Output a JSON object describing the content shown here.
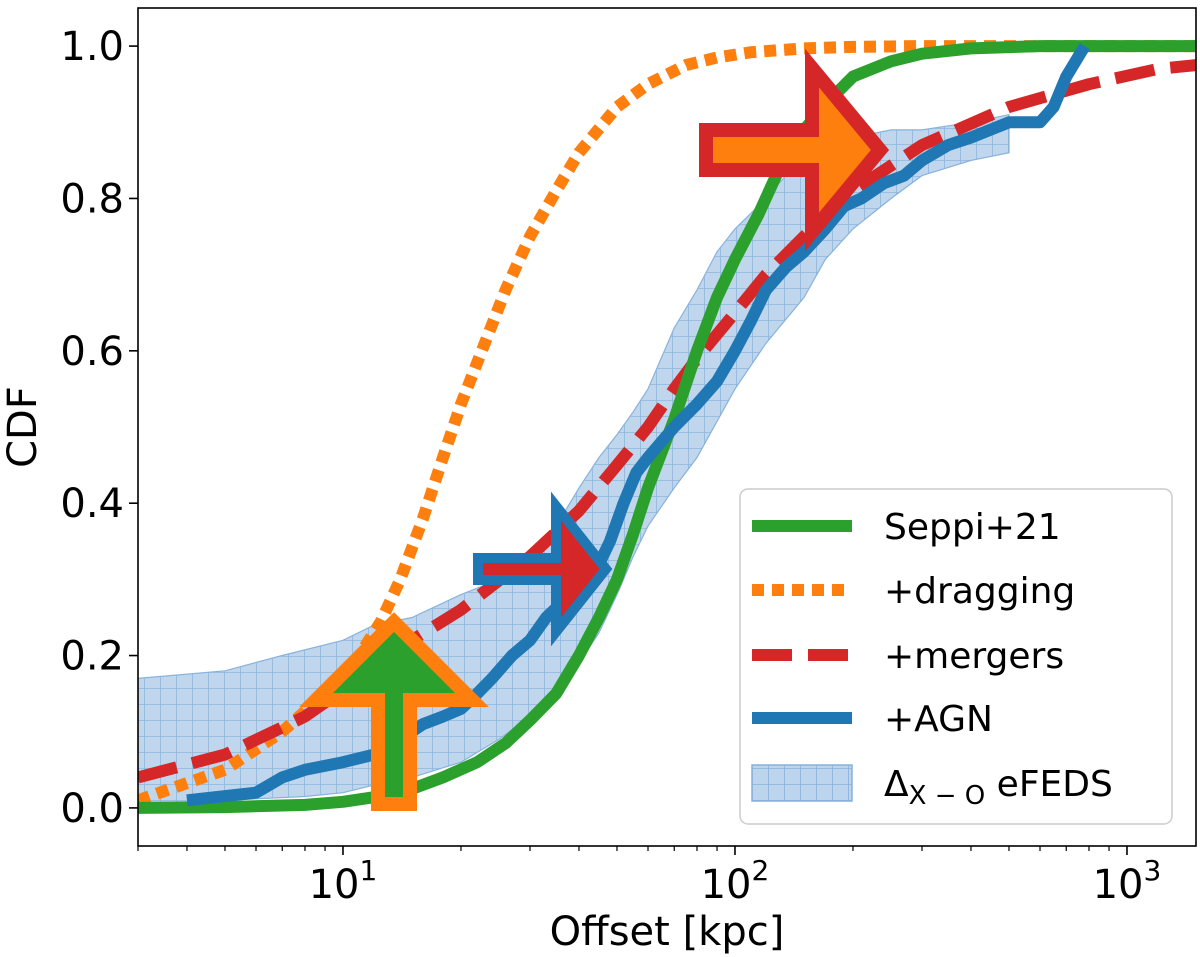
{
  "chart_data": {
    "type": "line",
    "xscale": "log",
    "xlim": [
      3,
      1500
    ],
    "ylim": [
      -0.05,
      1.05
    ],
    "xlabel": "Offset [kpc]",
    "ylabel": "CDF",
    "yticks": [
      0.0,
      0.2,
      0.4,
      0.6,
      0.8,
      1.0
    ],
    "ytick_labels": [
      "0.0",
      "0.2",
      "0.4",
      "0.6",
      "0.8",
      "1.0"
    ],
    "xticks": [
      10,
      100,
      1000
    ],
    "xtick_labels": [
      {
        "base": "10",
        "exp": "1"
      },
      {
        "base": "10",
        "exp": "2"
      },
      {
        "base": "10",
        "exp": "3"
      }
    ],
    "legend_position": "lower-right",
    "series": [
      {
        "name": "Seppi+21",
        "style": "solid",
        "color": "#2ca02c",
        "points": [
          [
            3,
            0.0
          ],
          [
            5,
            0.001
          ],
          [
            8,
            0.004
          ],
          [
            10,
            0.008
          ],
          [
            12,
            0.014
          ],
          [
            15,
            0.025
          ],
          [
            18,
            0.04
          ],
          [
            22,
            0.06
          ],
          [
            26,
            0.085
          ],
          [
            30,
            0.115
          ],
          [
            35,
            0.15
          ],
          [
            40,
            0.2
          ],
          [
            45,
            0.25
          ],
          [
            50,
            0.3
          ],
          [
            55,
            0.36
          ],
          [
            60,
            0.42
          ],
          [
            70,
            0.51
          ],
          [
            80,
            0.6
          ],
          [
            90,
            0.67
          ],
          [
            100,
            0.72
          ],
          [
            115,
            0.78
          ],
          [
            130,
            0.84
          ],
          [
            150,
            0.89
          ],
          [
            175,
            0.93
          ],
          [
            200,
            0.96
          ],
          [
            250,
            0.98
          ],
          [
            300,
            0.99
          ],
          [
            400,
            0.997
          ],
          [
            600,
            1.0
          ],
          [
            1500,
            1.0
          ]
        ]
      },
      {
        "name": "+dragging",
        "style": "dotted",
        "color": "#ff7f0e",
        "points": [
          [
            3,
            0.01
          ],
          [
            5,
            0.05
          ],
          [
            7,
            0.1
          ],
          [
            9,
            0.15
          ],
          [
            11,
            0.2
          ],
          [
            12.5,
            0.245
          ],
          [
            14,
            0.3
          ],
          [
            16,
            0.38
          ],
          [
            18,
            0.46
          ],
          [
            20,
            0.53
          ],
          [
            23,
            0.61
          ],
          [
            26,
            0.68
          ],
          [
            30,
            0.75
          ],
          [
            35,
            0.81
          ],
          [
            40,
            0.86
          ],
          [
            50,
            0.92
          ],
          [
            60,
            0.95
          ],
          [
            75,
            0.975
          ],
          [
            90,
            0.985
          ],
          [
            110,
            0.992
          ],
          [
            150,
            0.997
          ],
          [
            200,
            0.999
          ],
          [
            300,
            1.0
          ],
          [
            1500,
            1.0
          ]
        ]
      },
      {
        "name": "+mergers",
        "style": "dashed",
        "color": "#d62728",
        "points": [
          [
            3,
            0.04
          ],
          [
            5,
            0.07
          ],
          [
            8,
            0.12
          ],
          [
            11,
            0.17
          ],
          [
            15,
            0.22
          ],
          [
            20,
            0.26
          ],
          [
            30,
            0.33
          ],
          [
            40,
            0.39
          ],
          [
            50,
            0.45
          ],
          [
            60,
            0.5
          ],
          [
            70,
            0.55
          ],
          [
            80,
            0.59
          ],
          [
            100,
            0.65
          ],
          [
            120,
            0.7
          ],
          [
            150,
            0.75
          ],
          [
            200,
            0.81
          ],
          [
            300,
            0.87
          ],
          [
            500,
            0.92
          ],
          [
            800,
            0.95
          ],
          [
            1200,
            0.97
          ],
          [
            1500,
            0.975
          ]
        ]
      },
      {
        "name": "+AGN",
        "style": "solid",
        "color": "#1f77b4",
        "points": [
          [
            4,
            0.01
          ],
          [
            6,
            0.02
          ],
          [
            7,
            0.04
          ],
          [
            8,
            0.05
          ],
          [
            10,
            0.06
          ],
          [
            12,
            0.07
          ],
          [
            13,
            0.075
          ],
          [
            14,
            0.09
          ],
          [
            16,
            0.11
          ],
          [
            18,
            0.12
          ],
          [
            20,
            0.13
          ],
          [
            22,
            0.15
          ],
          [
            24,
            0.17
          ],
          [
            27,
            0.2
          ],
          [
            30,
            0.22
          ],
          [
            33,
            0.25
          ],
          [
            38,
            0.28
          ],
          [
            42,
            0.3
          ],
          [
            45,
            0.32
          ],
          [
            48,
            0.35
          ],
          [
            52,
            0.4
          ],
          [
            56,
            0.44
          ],
          [
            60,
            0.46
          ],
          [
            70,
            0.5
          ],
          [
            80,
            0.53
          ],
          [
            90,
            0.56
          ],
          [
            100,
            0.6
          ],
          [
            110,
            0.64
          ],
          [
            120,
            0.68
          ],
          [
            135,
            0.71
          ],
          [
            150,
            0.73
          ],
          [
            170,
            0.76
          ],
          [
            190,
            0.79
          ],
          [
            210,
            0.8
          ],
          [
            240,
            0.82
          ],
          [
            270,
            0.83
          ],
          [
            300,
            0.85
          ],
          [
            350,
            0.87
          ],
          [
            400,
            0.88
          ],
          [
            500,
            0.9
          ],
          [
            600,
            0.9
          ],
          [
            650,
            0.92
          ],
          [
            700,
            0.96
          ],
          [
            780,
            1.0
          ]
        ]
      }
    ],
    "band": {
      "name": "Δ_X-O eFEDS",
      "label_delta": "Δ",
      "label_sub": "X − O",
      "label_rest": " eFEDS",
      "color": "#aac8e4",
      "upper": [
        [
          3,
          0.17
        ],
        [
          5,
          0.18
        ],
        [
          7,
          0.2
        ],
        [
          10,
          0.22
        ],
        [
          12,
          0.24
        ],
        [
          15,
          0.25
        ],
        [
          20,
          0.28
        ],
        [
          25,
          0.3
        ],
        [
          30,
          0.33
        ],
        [
          35,
          0.37
        ],
        [
          40,
          0.42
        ],
        [
          45,
          0.46
        ],
        [
          50,
          0.49
        ],
        [
          55,
          0.52
        ],
        [
          60,
          0.55
        ],
        [
          70,
          0.63
        ],
        [
          80,
          0.68
        ],
        [
          90,
          0.73
        ],
        [
          100,
          0.76
        ],
        [
          120,
          0.8
        ],
        [
          140,
          0.84
        ],
        [
          160,
          0.86
        ],
        [
          200,
          0.88
        ],
        [
          250,
          0.89
        ],
        [
          300,
          0.89
        ],
        [
          400,
          0.9
        ],
        [
          500,
          0.91
        ]
      ],
      "lower": [
        [
          500,
          0.86
        ],
        [
          400,
          0.85
        ],
        [
          300,
          0.83
        ],
        [
          250,
          0.8
        ],
        [
          200,
          0.76
        ],
        [
          170,
          0.72
        ],
        [
          150,
          0.67
        ],
        [
          120,
          0.61
        ],
        [
          100,
          0.55
        ],
        [
          80,
          0.46
        ],
        [
          70,
          0.42
        ],
        [
          60,
          0.37
        ],
        [
          55,
          0.33
        ],
        [
          50,
          0.28
        ],
        [
          45,
          0.23
        ],
        [
          40,
          0.19
        ],
        [
          35,
          0.15
        ],
        [
          30,
          0.12
        ],
        [
          25,
          0.09
        ],
        [
          20,
          0.06
        ],
        [
          15,
          0.04
        ],
        [
          12,
          0.03
        ],
        [
          10,
          0.02
        ],
        [
          8,
          0.015
        ],
        [
          5,
          0.01
        ],
        [
          3,
          0.005
        ]
      ]
    },
    "arrows": [
      {
        "name": "up-arrow",
        "direction": "up",
        "fill": "#2ca02c",
        "outline": "#ff7f0e"
      },
      {
        "name": "right-arrow-small",
        "direction": "right",
        "fill": "#d62728",
        "outline": "#1f77b4"
      },
      {
        "name": "right-arrow-large",
        "direction": "right",
        "fill": "#ff7f0e",
        "outline": "#d62728"
      }
    ]
  }
}
